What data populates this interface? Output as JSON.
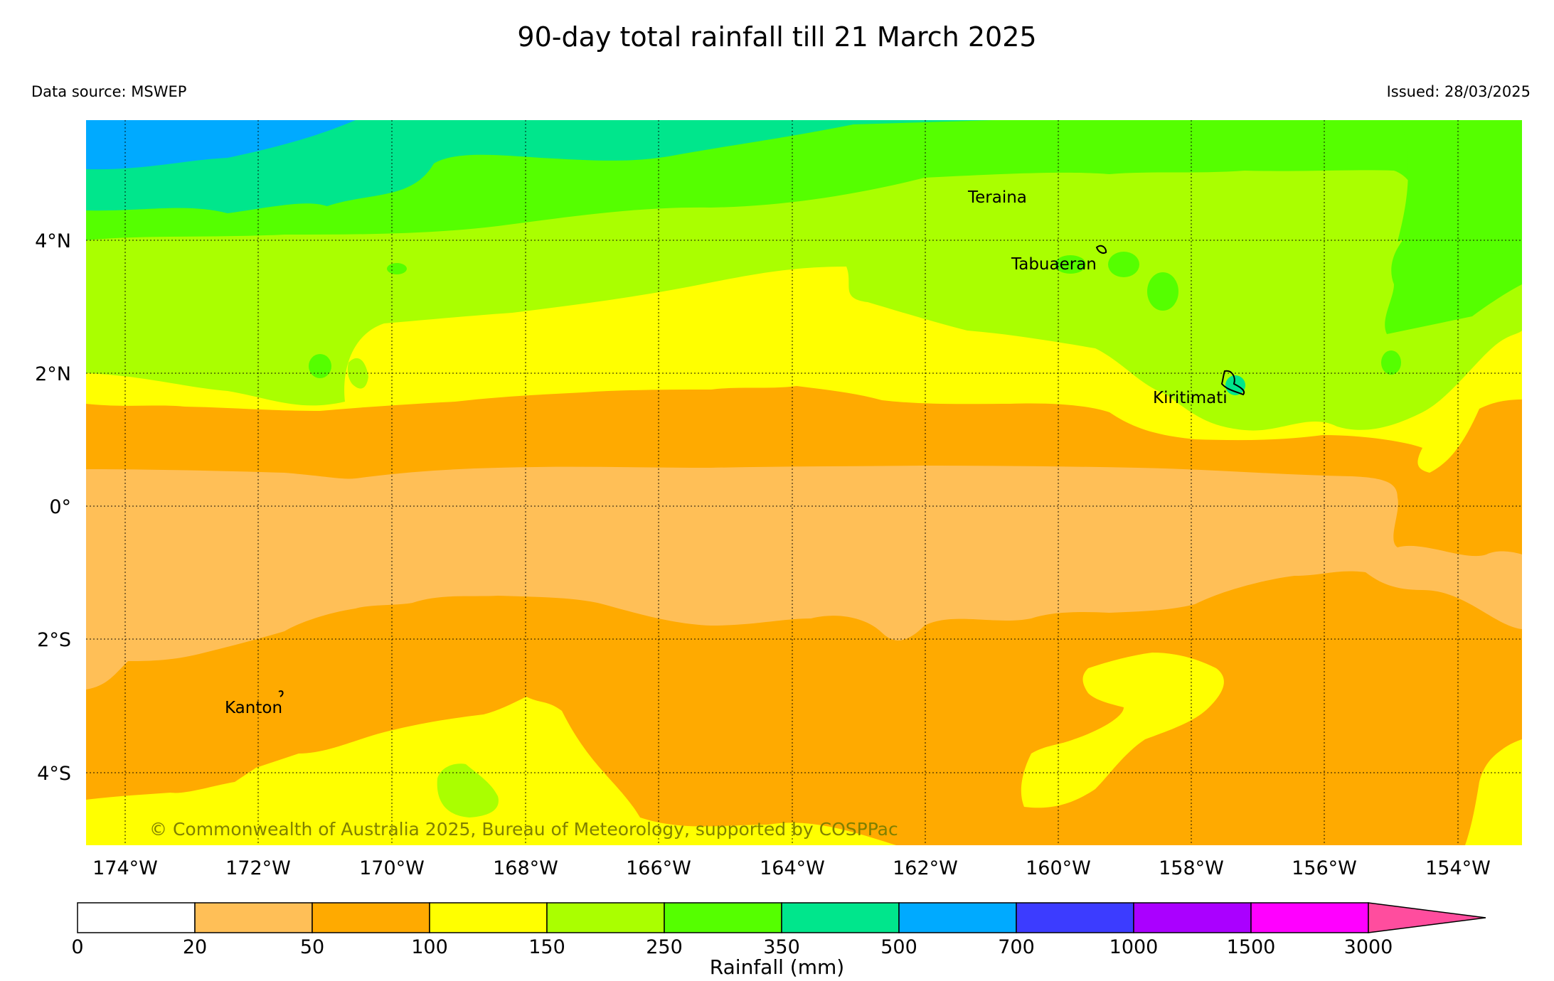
{
  "title": "90-day total rainfall till 21 March 2025",
  "data_source": "Data source: MSWEP",
  "issued": "Issued: 28/03/2025",
  "copyright": "© Commonwealth of Australia 2025, Bureau of Meteorology, supported by COSPPac",
  "colorbar": {
    "label": "Rainfall (mm)",
    "ticks": [
      "0",
      "20",
      "50",
      "100",
      "150",
      "250",
      "350",
      "500",
      "700",
      "1000",
      "1500",
      "3000"
    ],
    "colors": [
      "#ffffff",
      "#ffbf57",
      "#ffaa00",
      "#ffff00",
      "#aaff00",
      "#55ff00",
      "#00e68c",
      "#00aaff",
      "#3c3cff",
      "#aa00ff",
      "#ff00ff",
      "#ff4d9e"
    ]
  },
  "axes": {
    "lon_labels": [
      "174°W",
      "172°W",
      "170°W",
      "168°W",
      "166°W",
      "164°W",
      "162°W",
      "160°W",
      "158°W",
      "156°W",
      "154°W"
    ],
    "lat_labels": [
      "4°N",
      "2°N",
      "0°",
      "2°S",
      "4°S"
    ]
  },
  "places": [
    {
      "name": "Teraina"
    },
    {
      "name": "Tabuaeran"
    },
    {
      "name": "Kiritimati"
    },
    {
      "name": "Kanton"
    }
  ]
}
